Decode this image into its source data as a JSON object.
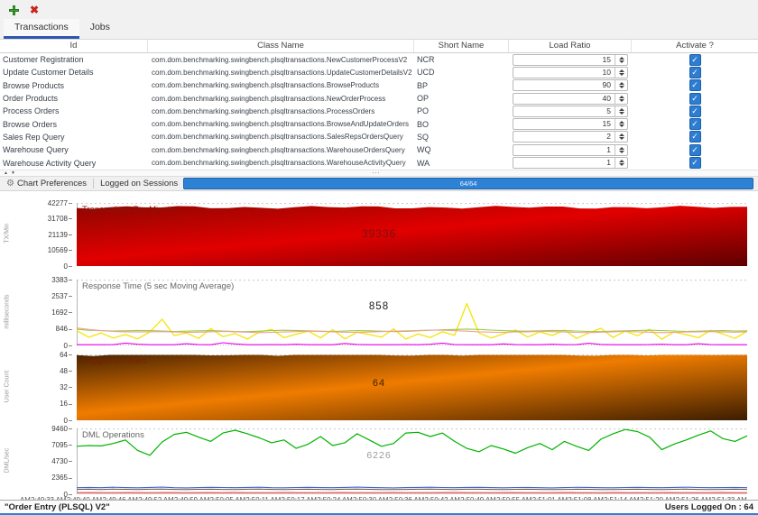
{
  "toolbar": {
    "add_icon": "plus-icon",
    "close_icon": "close-x-icon"
  },
  "tabs": [
    {
      "label": "Transactions",
      "selected": true
    },
    {
      "label": "Jobs",
      "selected": false
    }
  ],
  "table": {
    "columns": [
      "Id",
      "Class Name",
      "Short Name",
      "Load Ratio",
      "Activate ?"
    ],
    "rows": [
      {
        "id": "Customer Registration",
        "class_name": "com.dom.benchmarking.swingbench.plsqltransactions.NewCustomerProcessV2",
        "short_name": "NCR",
        "load_ratio": 15,
        "activated": true
      },
      {
        "id": "Update Customer Details",
        "class_name": "com.dom.benchmarking.swingbench.plsqltransactions.UpdateCustomerDetailsV2",
        "short_name": "UCD",
        "load_ratio": 10,
        "activated": true
      },
      {
        "id": "Browse Products",
        "class_name": "com.dom.benchmarking.swingbench.plsqltransactions.BrowseProducts",
        "short_name": "BP",
        "load_ratio": 90,
        "activated": true
      },
      {
        "id": "Order Products",
        "class_name": "com.dom.benchmarking.swingbench.plsqltransactions.NewOrderProcess",
        "short_name": "OP",
        "load_ratio": 40,
        "activated": true
      },
      {
        "id": "Process Orders",
        "class_name": "com.dom.benchmarking.swingbench.plsqltransactions.ProcessOrders",
        "short_name": "PO",
        "load_ratio": 5,
        "activated": true
      },
      {
        "id": "Browse Orders",
        "class_name": "com.dom.benchmarking.swingbench.plsqltransactions.BrowseAndUpdateOrders",
        "short_name": "BO",
        "load_ratio": 15,
        "activated": true
      },
      {
        "id": "Sales Rep Query",
        "class_name": "com.dom.benchmarking.swingbench.plsqltransactions.SalesRepsOrdersQuery",
        "short_name": "SQ",
        "load_ratio": 2,
        "activated": true
      },
      {
        "id": "Warehouse Query",
        "class_name": "com.dom.benchmarking.swingbench.plsqltransactions.WarehouseOrdersQuery",
        "short_name": "WQ",
        "load_ratio": 1,
        "activated": true
      },
      {
        "id": "Warehouse Activity Query",
        "class_name": "com.dom.benchmarking.swingbench.plsqltransactions.WarehouseActivityQuery",
        "short_name": "WA",
        "load_ratio": 1,
        "activated": true
      }
    ]
  },
  "control_bar": {
    "chart_preferences_label": "Chart Preferences",
    "logged_on_sessions_label": "Logged on Sessions",
    "progress": {
      "value": "64/64",
      "percent": 100,
      "color": "#2e82d6"
    }
  },
  "charts": [
    {
      "title": "Transactions Per Minute",
      "y_title": "TX/Min",
      "type": "area",
      "y_ticks": [
        42277,
        31708,
        21139,
        10569,
        0
      ],
      "y_max": 42277,
      "center_value": "39336",
      "area_value": 39336,
      "gradient": [
        "#8f0600",
        "#e10000",
        "#5e0000"
      ],
      "title_color": "#8b1408",
      "value_color": "#7a1010"
    },
    {
      "title": "Response Time (5 sec Moving Average)",
      "y_title": "milliseconds",
      "type": "line",
      "y_ticks": [
        3383,
        2537,
        1692,
        846,
        0
      ],
      "y_max": 3383,
      "center_value": "858",
      "title_color": "#666666",
      "value_color": "#1a1a1a",
      "series": [
        {
          "name": "yellow",
          "color": "#f2e50a",
          "width": 1.3,
          "values": [
            760,
            420,
            640,
            380,
            560,
            340,
            690,
            1350,
            510,
            640,
            360,
            870,
            450,
            610,
            330,
            690,
            820,
            400,
            580,
            730,
            390,
            810,
            340,
            680,
            560,
            420,
            850,
            330,
            590,
            410,
            700,
            520,
            2150,
            640,
            380,
            600,
            790,
            430,
            700,
            510,
            790,
            360,
            640,
            880,
            410,
            740,
            500,
            830,
            320,
            690,
            550,
            400,
            780,
            590,
            360,
            730
          ]
        },
        {
          "name": "green",
          "color": "#9dc938",
          "width": 1.1,
          "values": [
            830,
            780,
            760,
            740,
            750,
            770,
            760,
            740,
            720,
            730,
            750,
            760,
            740,
            720,
            710,
            730,
            760,
            780,
            770,
            750,
            730,
            720,
            740,
            760,
            750,
            730,
            710,
            720,
            750,
            780,
            800,
            820,
            840,
            820,
            790,
            760,
            740,
            730,
            750,
            770,
            760,
            740,
            720,
            710,
            730,
            750,
            770,
            780,
            760,
            740,
            720,
            730,
            750,
            760,
            740,
            750
          ]
        },
        {
          "name": "salmon",
          "color": "#f0a0a0",
          "width": 1.1,
          "values": [
            900,
            820,
            760,
            720,
            700,
            690,
            700,
            710,
            690,
            670,
            680,
            700,
            720,
            700,
            680,
            660,
            670,
            690,
            710,
            730,
            720,
            700,
            680,
            670,
            690,
            710,
            730,
            750,
            770,
            790,
            780,
            760,
            730,
            700,
            680,
            670,
            690,
            700,
            720,
            710,
            690,
            670,
            660,
            680,
            700,
            720,
            700,
            680,
            660,
            670,
            690,
            700,
            710,
            690,
            680,
            700
          ]
        },
        {
          "name": "magenta",
          "color": "#ee00ee",
          "width": 1.1,
          "values": [
            30,
            35,
            30,
            40,
            120,
            60,
            30,
            35,
            30,
            90,
            40,
            30,
            140,
            80,
            30,
            35,
            40,
            30,
            60,
            30,
            35,
            30,
            100,
            50,
            30,
            35,
            30,
            40,
            30,
            60,
            120,
            40,
            30,
            35,
            30,
            80,
            40,
            30,
            35,
            60,
            30,
            40,
            110,
            50,
            30,
            35,
            30,
            40,
            60,
            30,
            35,
            90,
            40,
            30,
            35,
            30
          ]
        }
      ]
    },
    {
      "title": "Logged on Users",
      "y_title": "User Count",
      "type": "area",
      "y_ticks": [
        64,
        48,
        32,
        16,
        0
      ],
      "y_max": 64,
      "center_value": "64",
      "area_value": 64,
      "gradient": [
        "#4a2300",
        "#ef7c00",
        "#3c1d00"
      ],
      "title_color": "#7d1f00",
      "value_color": "#3f2000"
    },
    {
      "title": "DML Operations",
      "y_title": "DML/sec",
      "type": "line",
      "y_ticks": [
        9460,
        7095,
        4730,
        2365,
        0
      ],
      "y_max": 9460,
      "center_value": "6226",
      "title_color": "#666666",
      "value_color": "#9a9a9a",
      "series": [
        {
          "name": "green",
          "color": "#00b300",
          "width": 1.2,
          "values": [
            6900,
            7000,
            6950,
            7300,
            7800,
            6300,
            5600,
            7500,
            8600,
            8900,
            8200,
            7600,
            8800,
            9200,
            8700,
            8100,
            7400,
            7800,
            6600,
            7200,
            8300,
            7000,
            7400,
            8700,
            7800,
            6900,
            7300,
            8800,
            8900,
            8300,
            8800,
            7600,
            6600,
            6100,
            7000,
            6500,
            5900,
            6700,
            7300,
            6400,
            7600,
            6900,
            6300,
            7900,
            8700,
            9300,
            9000,
            8200,
            6400,
            7200,
            7800,
            8500,
            9100,
            8000,
            7600,
            8400
          ]
        },
        {
          "name": "blue",
          "color": "#4466cc",
          "width": 1.1,
          "values": [
            950,
            980,
            940,
            1010,
            960,
            930,
            990,
            1020,
            950,
            920,
            960,
            1000,
            970,
            940,
            980,
            1010,
            950,
            930,
            970,
            1000,
            960,
            940,
            990,
            1020,
            980,
            950,
            920,
            960,
            990,
            1010,
            970,
            940,
            980,
            1000,
            960,
            930,
            970,
            990,
            950,
            920,
            960,
            1000,
            980,
            950,
            930,
            970,
            1000,
            960,
            940,
            980,
            1010,
            970,
            940,
            960,
            990,
            950
          ]
        },
        {
          "name": "dark",
          "color": "#5d5148",
          "width": 1.0,
          "values": [
            700,
            720,
            690,
            740,
            710,
            680,
            720,
            750,
            700,
            670,
            710,
            730,
            700,
            690,
            720,
            740,
            700,
            680,
            710,
            730,
            700,
            690,
            720,
            740,
            710,
            690,
            670,
            700,
            720,
            740,
            710,
            690,
            720,
            730,
            700,
            680,
            710,
            720,
            700,
            670,
            700,
            730,
            710,
            690,
            680,
            710,
            730,
            700,
            690,
            710,
            740,
            700,
            690,
            700,
            720,
            700
          ]
        },
        {
          "name": "red",
          "color": "#cc2a22",
          "width": 1.0,
          "values": [
            230,
            240,
            225,
            235,
            245,
            230,
            220,
            240,
            235,
            225,
            240,
            230,
            245,
            235,
            225,
            230,
            240,
            235,
            225,
            235,
            245,
            230,
            220,
            235,
            240,
            230,
            225,
            235,
            245,
            240,
            230,
            225,
            235,
            240,
            230,
            220,
            230,
            240,
            235,
            225,
            235,
            245,
            230,
            225,
            235,
            240,
            230,
            220,
            235,
            240,
            230,
            235
          ]
        },
        {
          "name": "pink",
          "color": "#f2b8b8",
          "width": 1.0,
          "values": [
            120,
            121,
            119,
            120,
            122,
            118,
            120,
            121
          ]
        }
      ]
    }
  ],
  "x_axis_labels": [
    "AM",
    "2:49:33 AM",
    "2:49:40 AM",
    "2:49:46 AM",
    "2:49:52 AM",
    "2:49:59 AM",
    "2:50:05 AM",
    "2:50:11 AM",
    "2:50:17 AM",
    "2:50:24 AM",
    "2:50:30 AM",
    "2:50:36 AM",
    "2:50:42 AM",
    "2:50:49 AM",
    "2:50:55 AM",
    "2:51:01 AM",
    "2:51:08 AM",
    "2:51:14 AM",
    "2:51:20 AM",
    "2:51:26 AM",
    "2:51:33 AM"
  ],
  "status_bar": {
    "left": "\"Order Entry (PLSQL) V2\"",
    "right": "Users Logged On : 64"
  }
}
